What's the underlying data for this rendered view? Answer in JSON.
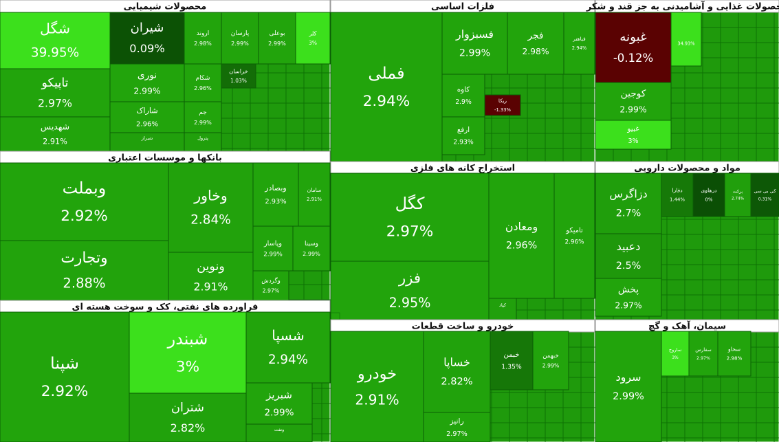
{
  "chart_data": {
    "type": "treemap",
    "groups": [
      {
        "title": "محصولات شیمیایی",
        "names": [
          "شگل",
          "شیران",
          "اروند",
          "پارسان",
          "بوعلی",
          "کلر",
          "تاپیکو",
          "شهدیس",
          "نوری",
          "شاراک",
          "شیراز",
          "شکام",
          "جم",
          "پترول",
          "خراسان"
        ],
        "values": [
          39.95,
          0.09,
          2.98,
          2.99,
          2.99,
          3,
          2.97,
          2.91,
          2.99,
          2.96,
          null,
          2.96,
          2.99,
          null,
          1.03
        ],
        "value_labels": [
          "39.95%",
          "0.09%",
          "2.98%",
          "2.99%",
          "2.99%",
          "3%",
          "2.97%",
          "2.91%",
          "2.99%",
          "2.96%",
          null,
          "2.96%",
          "2.99%",
          null,
          "1.03%"
        ]
      },
      {
        "title": "فلزات اساسی",
        "names": [
          "فملی",
          "فسبزوار",
          "فجر",
          "فباهنر",
          "کاوه",
          "ارفع",
          "ریکا"
        ],
        "values": [
          2.94,
          2.99,
          2.98,
          2.94,
          2.9,
          2.93,
          -1.33
        ],
        "value_labels": [
          "2.94%",
          "2.99%",
          "2.98%",
          "2.94%",
          "2.9%",
          "2.93%",
          "-1.33%"
        ]
      },
      {
        "title": "محصولات غذایی و آشامیدنی به جز قند و شکر",
        "names": [
          "غبونه",
          "کوجین",
          "غبیو",
          null
        ],
        "values": [
          -0.12,
          2.99,
          3,
          34.93
        ],
        "value_labels": [
          "-0.12%",
          "2.99%",
          "3%",
          "34.93%"
        ]
      },
      {
        "title": "بانکها و موسسات اعتباری",
        "names": [
          "وبملت",
          "وتجارت",
          "وخاور",
          "ونوین",
          "وبصادر",
          "سامان",
          "وپاسار",
          "وسینا",
          "وگردش"
        ],
        "values": [
          2.92,
          2.88,
          2.84,
          2.91,
          2.93,
          2.91,
          2.99,
          2.99,
          2.97
        ],
        "value_labels": [
          "2.92%",
          "2.88%",
          "2.84%",
          "2.91%",
          "2.93%",
          "2.91%",
          "2.99%",
          "2.99%",
          "2.97%"
        ]
      },
      {
        "title": "استخراج کانه های فلزی",
        "names": [
          "کگل",
          "فزر",
          "ومعادن",
          "تامیکو",
          "کپاد"
        ],
        "values": [
          2.97,
          2.95,
          2.96,
          2.96,
          null
        ],
        "value_labels": [
          "2.97%",
          "2.95%",
          "2.96%",
          "2.96%",
          null
        ]
      },
      {
        "title": "مواد و محصولات دارویی",
        "names": [
          "دزاگرس",
          "دعبید",
          "پخش",
          "دفارا",
          "درهاوی",
          "برکت",
          "کی بی سی"
        ],
        "values": [
          2.7,
          2.5,
          2.97,
          1.44,
          0,
          2.74,
          0.31
        ],
        "value_labels": [
          "2.7%",
          "2.5%",
          "2.97%",
          "1.44%",
          "0%",
          "2.74%",
          "0.31%"
        ]
      },
      {
        "title": "فراورده های نفتی، کک و سوخت هسته ای",
        "names": [
          "شپنا",
          "شبندر",
          "شتران",
          "شسپا",
          "شبریز",
          "ونفت"
        ],
        "values": [
          2.92,
          3,
          2.82,
          2.94,
          2.99,
          null
        ],
        "value_labels": [
          "2.92%",
          "3%",
          "2.82%",
          "2.94%",
          "2.99%",
          null
        ]
      },
      {
        "title": "خودرو و ساخت قطعات",
        "names": [
          "خودرو",
          "خساپا",
          "رانیز",
          "خبمن",
          "خبهمن"
        ],
        "values": [
          2.91,
          2.82,
          2.97,
          1.35,
          2.99
        ],
        "value_labels": [
          "2.91%",
          "2.82%",
          "2.97%",
          "1.35%",
          "2.99%"
        ]
      },
      {
        "title": "سیمان، آهک و گچ",
        "names": [
          "سرود",
          "ساروج",
          "سفارس",
          "سخاو"
        ],
        "values": [
          2.99,
          3,
          2.97,
          2.98
        ],
        "value_labels": [
          "2.99%",
          "3%",
          "2.97%",
          "2.98%"
        ]
      }
    ]
  }
}
